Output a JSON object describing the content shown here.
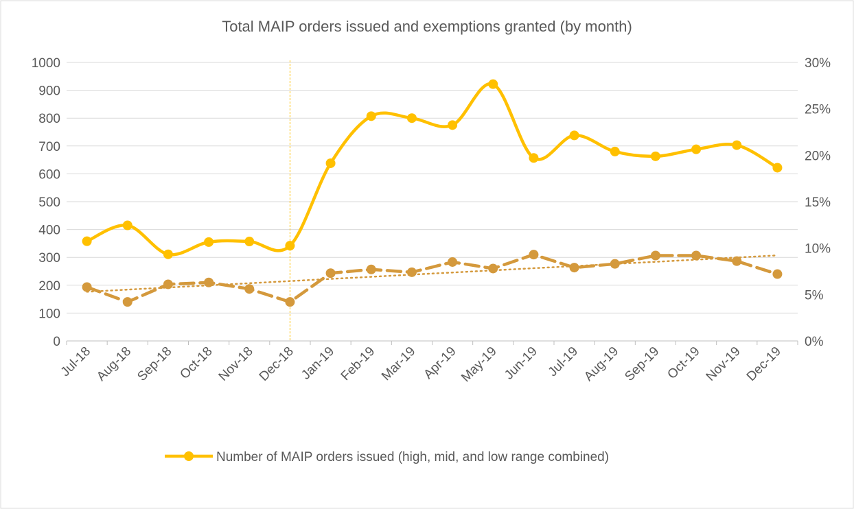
{
  "chart_data": {
    "type": "line",
    "title": "Total MAIP orders issued and exemptions granted (by month)",
    "categories": [
      "Jul-18",
      "Aug-18",
      "Sep-18",
      "Oct-18",
      "Nov-18",
      "Dec-18",
      "Jan-19",
      "Feb-19",
      "Mar-19",
      "Apr-19",
      "May-19",
      "Jun-19",
      "Jul-19",
      "Aug-19",
      "Sep-19",
      "Oct-19",
      "Nov-19",
      "Dec-19"
    ],
    "series": [
      {
        "name": "Number of MAIP orders issued (high, mid, and low range combined)",
        "color": "#FFC000",
        "style": "solid",
        "smooth": true,
        "values": [
          358,
          415,
          311,
          355,
          357,
          342,
          638,
          807,
          800,
          775,
          922,
          657,
          738,
          680,
          663,
          688,
          703,
          622
        ]
      },
      {
        "color": "#D4993C",
        "style": "dashed",
        "axis": "y2",
        "trendline": true,
        "values": [
          5.8,
          4.2,
          6.1,
          6.3,
          5.6,
          4.2,
          7.3,
          7.7,
          7.4,
          8.5,
          7.8,
          9.3,
          7.9,
          8.3,
          9.2,
          9.2,
          8.6,
          7.2
        ]
      }
    ],
    "ylim": [
      0,
      1000
    ],
    "yticks": [
      0,
      100,
      200,
      300,
      400,
      500,
      600,
      700,
      800,
      900,
      1000
    ],
    "y2lim": [
      0,
      30
    ],
    "y2ticks": [
      {
        "value": 0,
        "label": "0%"
      },
      {
        "value": 5,
        "label": "5%"
      },
      {
        "value": 10,
        "label": "10%"
      },
      {
        "value": 15,
        "label": "15%"
      },
      {
        "value": 20,
        "label": "20%"
      },
      {
        "value": 25,
        "label": "25%"
      },
      {
        "value": 30,
        "label": "30%"
      }
    ],
    "grid": true,
    "legend": "bottom",
    "vline_category": "Dec-18"
  }
}
